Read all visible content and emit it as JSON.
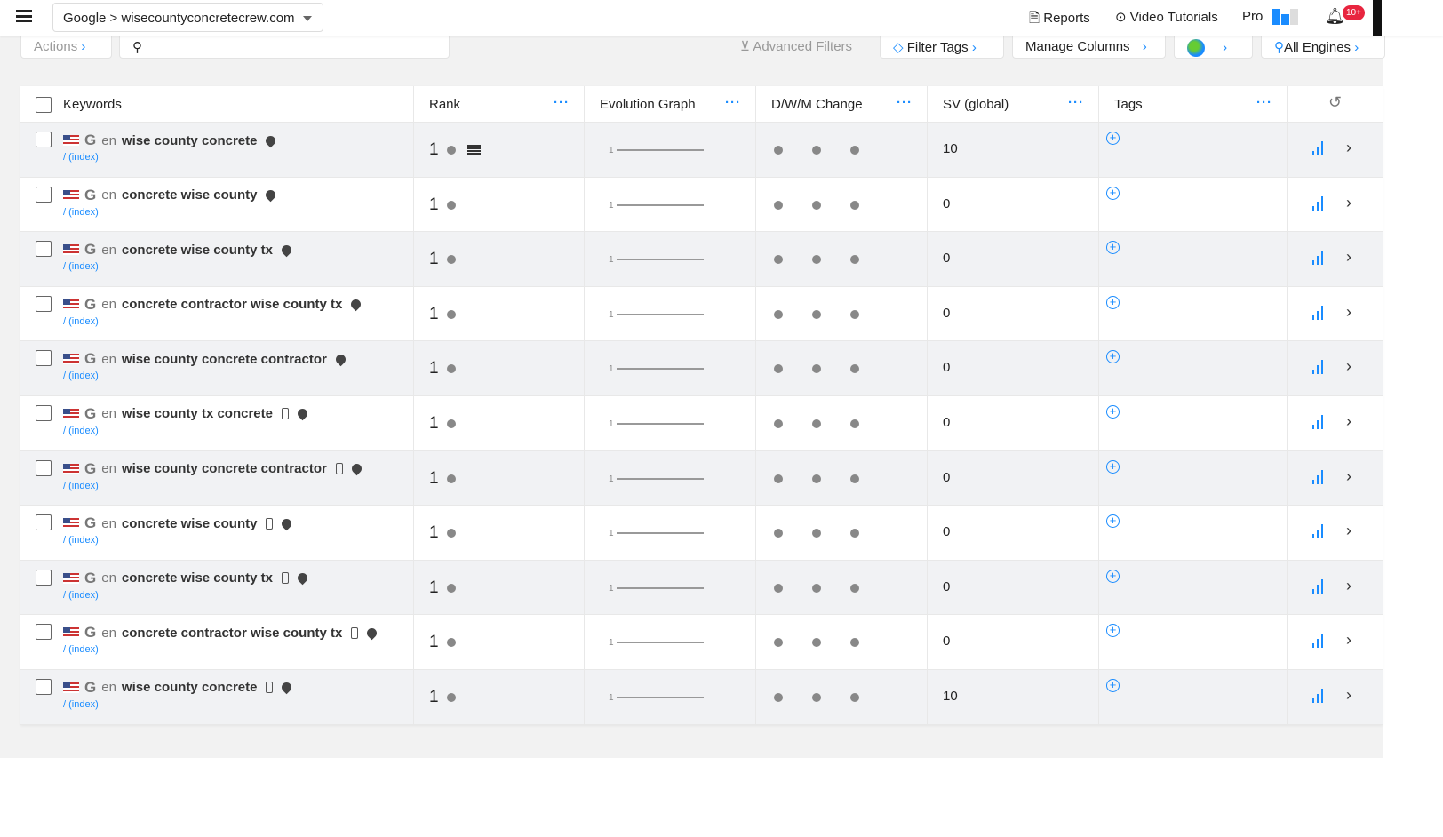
{
  "topbar": {
    "project": "Google > wisecountyconcretecrew.com",
    "reports": "Reports",
    "video_tutorials": "Video Tutorials",
    "plan": "Pro",
    "notifications": "10+"
  },
  "toolbar": {
    "actions": "Actions",
    "search_placeholder": "",
    "advanced_filters": "Advanced Filters",
    "filter_tags": "Filter Tags",
    "manage_columns": "Manage Columns",
    "all_engines": "All Engines"
  },
  "columns": {
    "keywords": "Keywords",
    "rank": "Rank",
    "evolution": "Evolution Graph",
    "change": "D/W/M Change",
    "sv": "SV (global)",
    "tags": "Tags"
  },
  "rows": [
    {
      "lang": "en",
      "keyword": "wise county concrete",
      "path": "/ (index)",
      "rank": "1",
      "evo": "1",
      "sv": "10",
      "mobile": false,
      "list": true
    },
    {
      "lang": "en",
      "keyword": "concrete wise county",
      "path": "/ (index)",
      "rank": "1",
      "evo": "1",
      "sv": "0",
      "mobile": false
    },
    {
      "lang": "en",
      "keyword": "concrete wise county tx",
      "path": "/ (index)",
      "rank": "1",
      "evo": "1",
      "sv": "0",
      "mobile": false
    },
    {
      "lang": "en",
      "keyword": "concrete contractor wise county tx",
      "path": "/ (index)",
      "rank": "1",
      "evo": "1",
      "sv": "0",
      "mobile": false
    },
    {
      "lang": "en",
      "keyword": "wise county concrete contractor",
      "path": "/ (index)",
      "rank": "1",
      "evo": "1",
      "sv": "0",
      "mobile": false
    },
    {
      "lang": "en",
      "keyword": "wise county tx concrete",
      "path": "/ (index)",
      "rank": "1",
      "evo": "1",
      "sv": "0",
      "mobile": true
    },
    {
      "lang": "en",
      "keyword": "wise county concrete contractor",
      "path": "/ (index)",
      "rank": "1",
      "evo": "1",
      "sv": "0",
      "mobile": true
    },
    {
      "lang": "en",
      "keyword": "concrete wise county",
      "path": "/ (index)",
      "rank": "1",
      "evo": "1",
      "sv": "0",
      "mobile": true
    },
    {
      "lang": "en",
      "keyword": "concrete wise county tx",
      "path": "/ (index)",
      "rank": "1",
      "evo": "1",
      "sv": "0",
      "mobile": true
    },
    {
      "lang": "en",
      "keyword": "concrete contractor wise county tx",
      "path": "/ (index)",
      "rank": "1",
      "evo": "1",
      "sv": "0",
      "mobile": true
    },
    {
      "lang": "en",
      "keyword": "wise county concrete",
      "path": "/ (index)",
      "rank": "1",
      "evo": "1",
      "sv": "10",
      "mobile": true
    }
  ],
  "colors": {
    "accent": "#1a8cff",
    "badge": "#e8253f"
  }
}
